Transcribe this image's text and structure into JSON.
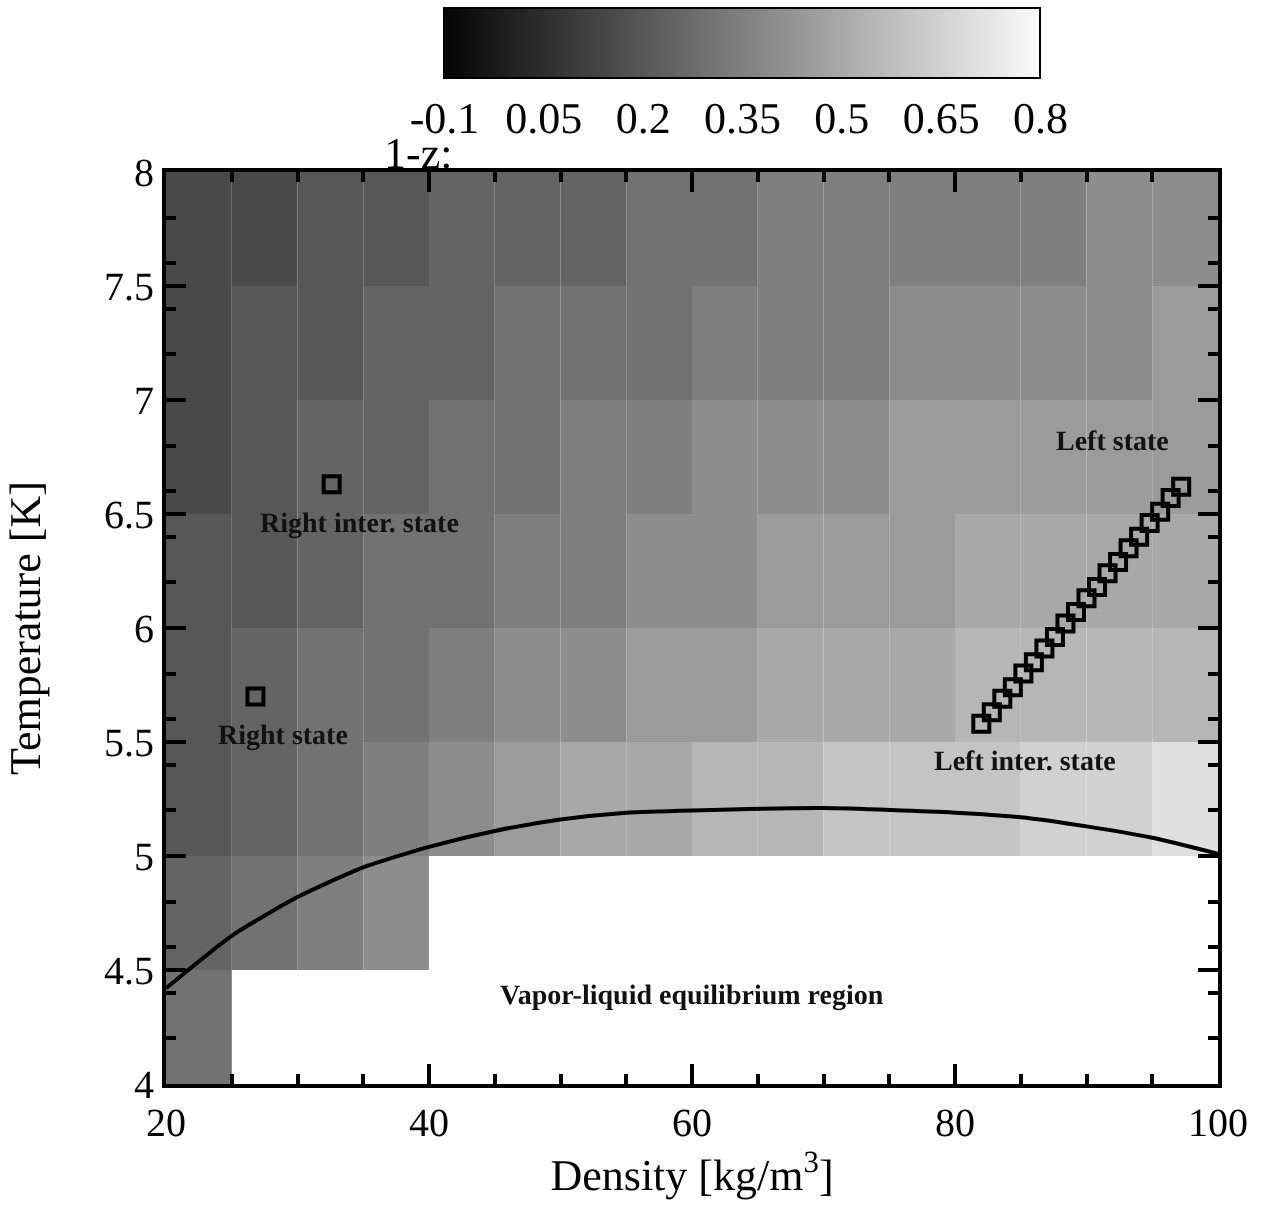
{
  "chart_data": {
    "type": "heatmap",
    "xlabel": "Density [kg/m$^{3}$]",
    "ylabel": "Temperature [K]",
    "clabel": "1-z:",
    "x": [
      22.5,
      27.5,
      32.5,
      37.5,
      42.5,
      47.5,
      52.5,
      57.5,
      62.5,
      67.5,
      72.5,
      77.5,
      82.5,
      87.5,
      92.5,
      97.5
    ],
    "cells": [
      [
        0.15,
        0.15,
        0.2,
        0.2,
        0.25,
        0.25,
        0.25,
        0.3,
        0.3,
        0.35,
        0.35,
        0.35,
        0.35,
        0.35,
        0.4,
        0.4
      ],
      [
        0.15,
        0.2,
        0.2,
        0.25,
        0.25,
        0.3,
        0.3,
        0.3,
        0.35,
        0.35,
        0.35,
        0.4,
        0.4,
        0.4,
        0.4,
        0.45
      ],
      [
        0.15,
        0.2,
        0.25,
        0.25,
        0.3,
        0.3,
        0.35,
        0.35,
        0.4,
        0.4,
        0.4,
        0.45,
        0.45,
        0.45,
        0.45,
        0.45
      ],
      [
        0.2,
        0.2,
        0.25,
        0.3,
        0.3,
        0.35,
        0.35,
        0.4,
        0.4,
        0.45,
        0.45,
        0.45,
        0.5,
        0.5,
        0.5,
        0.5
      ],
      [
        0.2,
        0.25,
        0.3,
        0.3,
        0.35,
        0.4,
        0.4,
        0.45,
        0.45,
        0.5,
        0.5,
        0.5,
        0.55,
        0.55,
        0.55,
        0.55
      ],
      [
        0.2,
        0.25,
        0.3,
        0.35,
        0.4,
        0.45,
        0.5,
        0.5,
        0.55,
        0.55,
        0.6,
        0.6,
        0.6,
        0.65,
        0.65,
        0.7
      ],
      [
        0.25,
        0.3,
        0.35,
        0.4,
        null,
        null,
        null,
        null,
        null,
        null,
        null,
        null,
        null,
        null,
        null,
        null
      ],
      [
        0.3,
        null,
        null,
        null,
        null,
        null,
        null,
        null,
        null,
        null,
        null,
        null,
        null,
        null,
        null,
        null
      ]
    ],
    "clim": [
      -0.1,
      0.8
    ],
    "cticks": [
      -0.1,
      0.05,
      0.2,
      0.35,
      0.5,
      0.65,
      0.8
    ],
    "xlim": [
      20,
      100
    ],
    "xticks": [
      20,
      40,
      60,
      80,
      100
    ],
    "ylim": [
      4,
      8
    ],
    "yticks": [
      4,
      4.5,
      5,
      5.5,
      6,
      6.5,
      7,
      7.5,
      8
    ],
    "series": [
      {
        "type": "line",
        "color": "#000000",
        "marker": "none",
        "x": [
          20,
          25,
          30,
          35,
          40,
          45,
          50,
          55,
          60,
          70,
          80,
          85,
          90,
          95,
          100
        ],
        "values": [
          4.42,
          4.65,
          4.82,
          4.95,
          5.04,
          5.11,
          5.16,
          5.19,
          5.2,
          5.21,
          5.19,
          5.17,
          5.13,
          5.08,
          5.01
        ]
      },
      {
        "type": "scatter",
        "color": "#000000",
        "marker": "square",
        "x": [
          26.8,
          32.6
        ],
        "values": [
          5.7,
          6.63
        ]
      },
      {
        "type": "scatter",
        "color": "#000000",
        "marker": "square",
        "x": [
          82.0,
          82.8,
          83.6,
          84.4,
          85.2,
          86.0,
          86.8,
          87.6,
          88.4,
          89.2,
          90.0,
          90.8,
          91.6,
          92.4,
          93.2,
          94.0,
          94.8,
          95.6,
          96.4,
          97.2
        ],
        "values": [
          5.58,
          5.63,
          5.69,
          5.74,
          5.8,
          5.85,
          5.91,
          5.96,
          6.02,
          6.07,
          6.13,
          6.18,
          6.24,
          6.29,
          6.35,
          6.4,
          6.46,
          6.51,
          6.57,
          6.62
        ]
      }
    ],
    "annotations": [
      {
        "text": "Right inter. state",
        "x": 32.6,
        "y": 6.63
      },
      {
        "text": "Right state",
        "x": 26.8,
        "y": 5.7
      },
      {
        "text": "Left state",
        "x": 97.2,
        "y": 6.62
      },
      {
        "text": "Left inter. state",
        "x": 82.0,
        "y": 5.58
      },
      "Vapor-liquid equilibrium region"
    ]
  }
}
